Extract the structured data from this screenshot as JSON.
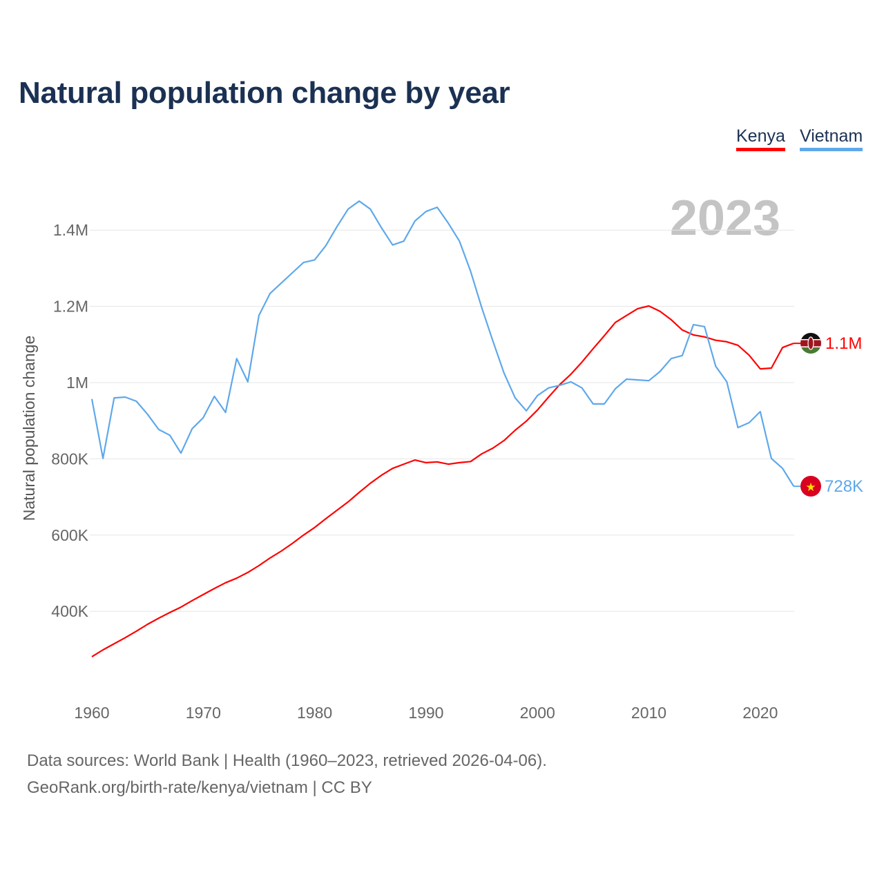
{
  "title": "Natural population change by year",
  "legend": [
    {
      "label": "Kenya",
      "color": "#ff0000"
    },
    {
      "label": "Vietnam",
      "color": "#5ea8eb"
    }
  ],
  "year_watermark": "2023",
  "footer": {
    "line1": "Data sources: World Bank | Health (1960–2023, retrieved 2026-04-06).",
    "line2": "GeoRank.org/birth-rate/kenya/vietnam | CC BY"
  },
  "chart_data": {
    "type": "line",
    "title": "Natural population change by year",
    "xlabel": "",
    "ylabel": "Natural population change",
    "xlim": [
      1960,
      2023
    ],
    "ylim": [
      200000,
      1500000
    ],
    "x_ticks": [
      1960,
      1970,
      1980,
      1990,
      2000,
      2010,
      2020
    ],
    "x_tick_labels": [
      "1960",
      "1970",
      "1980",
      "1990",
      "2000",
      "2010",
      "2020"
    ],
    "y_ticks": [
      400000,
      600000,
      800000,
      1000000,
      1200000,
      1400000
    ],
    "y_tick_labels": [
      "400K",
      "600K",
      "800K",
      "1M",
      "1.2M",
      "1.4M"
    ],
    "grid": true,
    "legend_position": "top-right",
    "x": [
      1960,
      1961,
      1962,
      1963,
      1964,
      1965,
      1966,
      1967,
      1968,
      1969,
      1970,
      1971,
      1972,
      1973,
      1974,
      1975,
      1976,
      1977,
      1978,
      1979,
      1980,
      1981,
      1982,
      1983,
      1984,
      1985,
      1986,
      1987,
      1988,
      1989,
      1990,
      1991,
      1992,
      1993,
      1994,
      1995,
      1996,
      1997,
      1998,
      1999,
      2000,
      2001,
      2002,
      2003,
      2004,
      2005,
      2006,
      2007,
      2008,
      2009,
      2010,
      2011,
      2012,
      2013,
      2014,
      2015,
      2016,
      2017,
      2018,
      2019,
      2020,
      2021,
      2022,
      2023
    ],
    "series": [
      {
        "name": "Kenya",
        "color": "#ff0000",
        "end_label": "1.1M",
        "values": [
          281000,
          299000,
          315000,
          331000,
          348000,
          366000,
          382000,
          397000,
          411000,
          428000,
          444000,
          460000,
          475000,
          487000,
          502000,
          520000,
          540000,
          558000,
          578000,
          600000,
          620000,
          643000,
          665000,
          687000,
          712000,
          736000,
          757000,
          775000,
          786000,
          797000,
          790000,
          792000,
          786000,
          790000,
          793000,
          813000,
          828000,
          848000,
          875000,
          899000,
          928000,
          962000,
          995000,
          1022000,
          1054000,
          1089000,
          1123000,
          1158000,
          1176000,
          1194000,
          1201000,
          1187000,
          1165000,
          1138000,
          1125000,
          1120000,
          1111000,
          1107000,
          1098000,
          1072000,
          1036000,
          1038000,
          1092000,
          1103000
        ]
      },
      {
        "name": "Vietnam",
        "color": "#5ea8eb",
        "end_label": "728K",
        "values": [
          957000,
          801000,
          960000,
          962000,
          951000,
          917000,
          877000,
          862000,
          815000,
          879000,
          908000,
          964000,
          922000,
          1063000,
          1002000,
          1176000,
          1234000,
          1261000,
          1288000,
          1315000,
          1322000,
          1359000,
          1409000,
          1455000,
          1476000,
          1455000,
          1406000,
          1361000,
          1371000,
          1424000,
          1449000,
          1460000,
          1418000,
          1371000,
          1292000,
          1197000,
          1109000,
          1025000,
          960000,
          926000,
          966000,
          986000,
          993000,
          1002000,
          986000,
          944000,
          944000,
          984000,
          1009000,
          1007000,
          1005000,
          1029000,
          1063000,
          1071000,
          1152000,
          1147000,
          1043000,
          1002000,
          882000,
          895000,
          924000,
          801000,
          775000,
          728000
        ]
      }
    ]
  }
}
